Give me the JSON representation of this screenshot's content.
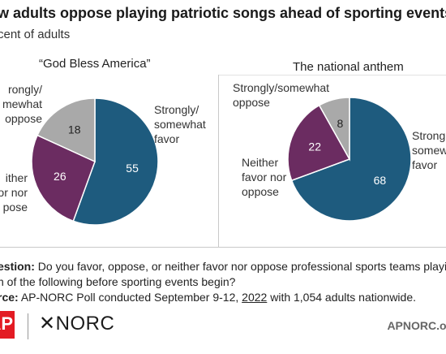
{
  "title": "w adults oppose playing patriotic songs ahead of sporting events.",
  "subtitle": "cent of adults",
  "chart_data": [
    {
      "type": "pie",
      "title": "“God Bless America”",
      "slices": [
        {
          "label": "Strongly/ somewhat favor",
          "label_lines": [
            "Strongly/",
            "somewhat",
            "favor"
          ],
          "value": 55,
          "color": "#1e5b7e"
        },
        {
          "label": "Neither favor nor oppose",
          "label_lines": [
            "ither",
            "or nor",
            "pose"
          ],
          "value": 26,
          "color": "#6b2c61"
        },
        {
          "label": "Strongly/ somewhat oppose",
          "label_lines": [
            "rongly/",
            "mewhat",
            "oppose"
          ],
          "value": 18,
          "color": "#a9a9a9"
        }
      ]
    },
    {
      "type": "pie",
      "title": "The national anthem",
      "slices": [
        {
          "label": "Strongly/ somewhat favor",
          "label_lines": [
            "Strong",
            "somewh",
            "favor"
          ],
          "value": 68,
          "color": "#1e5b7e"
        },
        {
          "label": "Neither favor nor oppose",
          "label_lines": [
            "Neither",
            "favor nor",
            "oppose"
          ],
          "value": 22,
          "color": "#6b2c61"
        },
        {
          "label": "Strongly/ somewhat oppose",
          "label_lines": [
            "Strongly/somewhat",
            "oppose"
          ],
          "value": 8,
          "color": "#a9a9a9"
        }
      ]
    }
  ],
  "question": {
    "label": "estion:",
    "line1": "Do you favor, oppose, or neither favor nor oppose professional sports teams playin",
    "line2": "h of the following before sporting events begin?"
  },
  "source": {
    "label": "rce:",
    "text_before": "AP-NORC Poll conducted September 9-12, ",
    "date": "2022",
    "text_after": " with 1,054 adults nationwide."
  },
  "footer": {
    "ap_logo": "AP",
    "norc_logo": "✕NORC",
    "site": "APNORC.or"
  }
}
